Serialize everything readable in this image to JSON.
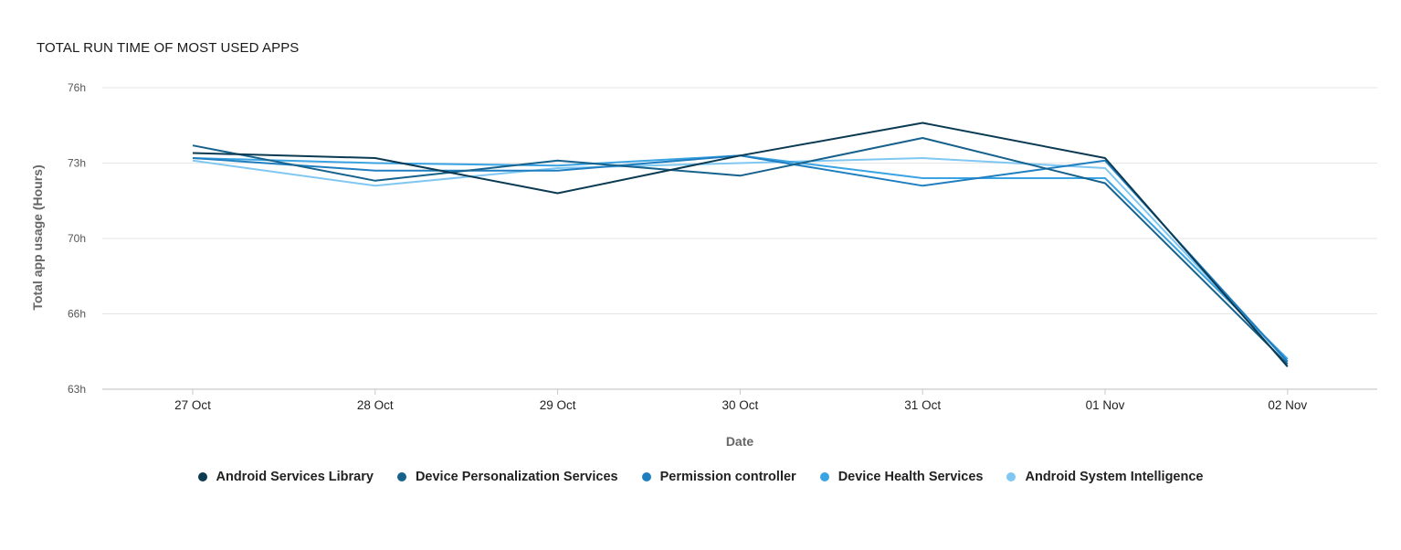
{
  "chart_data": {
    "type": "line",
    "title": "TOTAL RUN TIME OF MOST USED APPS",
    "xlabel": "Date",
    "ylabel": "Total app usage (Hours)",
    "categories": [
      "27 Oct",
      "28 Oct",
      "29 Oct",
      "30 Oct",
      "31 Oct",
      "01 Nov",
      "02 Nov"
    ],
    "y_ticks": [
      {
        "value": 63,
        "label": "63h"
      },
      {
        "value": 66,
        "label": "66h"
      },
      {
        "value": 70,
        "label": "70h"
      },
      {
        "value": 73,
        "label": "73h"
      },
      {
        "value": 76,
        "label": "76h"
      }
    ],
    "ylim": [
      63,
      76
    ],
    "grid": true,
    "legend_position": "bottom",
    "series": [
      {
        "name": "Android Services Library",
        "color": "#0b3a53",
        "values": [
          73.4,
          73.2,
          71.8,
          73.3,
          74.6,
          73.2,
          63.9
        ]
      },
      {
        "name": "Device Personalization Services",
        "color": "#17628d",
        "values": [
          73.7,
          72.3,
          73.1,
          72.5,
          74.0,
          72.2,
          64.0
        ]
      },
      {
        "name": "Permission controller",
        "color": "#1f7ec0",
        "values": [
          73.2,
          72.7,
          72.7,
          73.3,
          72.1,
          73.1,
          64.1
        ]
      },
      {
        "name": "Device Health Services",
        "color": "#3aa3e3",
        "values": [
          73.2,
          73.0,
          72.9,
          73.3,
          72.4,
          72.4,
          64.2
        ]
      },
      {
        "name": "Android System Intelligence",
        "color": "#80c7f2",
        "values": [
          73.1,
          72.1,
          72.8,
          73.0,
          73.2,
          72.8,
          64.1
        ]
      }
    ]
  }
}
